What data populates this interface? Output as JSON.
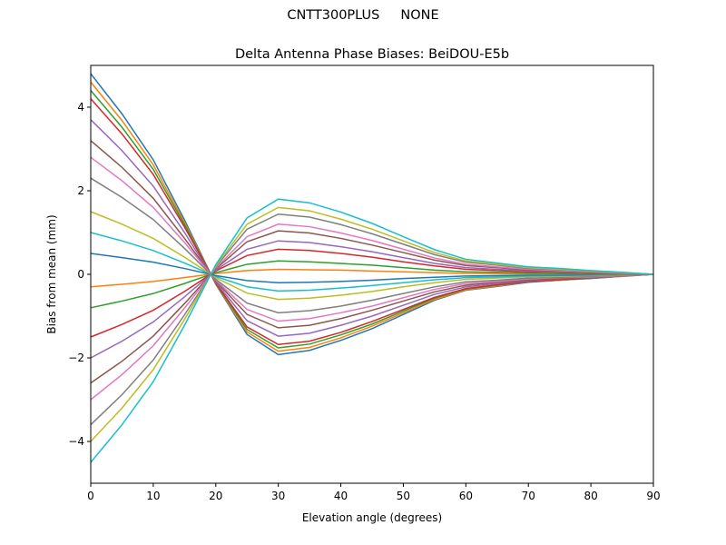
{
  "suptitle": "CNTT300PLUS     NONE",
  "chart_data": {
    "type": "line",
    "title": "Delta Antenna Phase Biases: BeiDOU-E5b",
    "xlabel": "Elevation angle (degrees)",
    "ylabel": "Bias from mean (mm)",
    "xlim": [
      0,
      90
    ],
    "ylim": [
      -5,
      5
    ],
    "xticks": [
      0,
      10,
      20,
      30,
      40,
      50,
      60,
      70,
      80,
      90
    ],
    "yticks": [
      -4,
      -2,
      0,
      2,
      4
    ],
    "grid": false,
    "colors": [
      "#1f77b4",
      "#ff7f0e",
      "#2ca02c",
      "#d62728",
      "#9467bd",
      "#8c564b",
      "#e377c2",
      "#7f7f7f",
      "#bcbd22",
      "#17becf"
    ],
    "x": [
      0,
      5,
      10,
      15,
      20,
      25,
      30,
      35,
      40,
      45,
      50,
      55,
      60,
      65,
      70,
      75,
      80,
      85,
      90
    ],
    "series": [
      {
        "values": [
          4.8,
          3.84,
          2.74,
          1.3,
          -0.24,
          -1.44,
          -1.92,
          -1.82,
          -1.58,
          -1.3,
          -0.96,
          -0.62,
          -0.38,
          -0.29,
          -0.19,
          -0.14,
          -0.1,
          -0.05,
          0
        ]
      },
      {
        "values": [
          4.6,
          3.68,
          2.62,
          1.24,
          -0.23,
          -1.38,
          -1.84,
          -1.75,
          -1.52,
          -1.24,
          -0.92,
          -0.6,
          -0.37,
          -0.28,
          -0.18,
          -0.14,
          -0.09,
          -0.05,
          0
        ]
      },
      {
        "values": [
          4.4,
          3.52,
          2.51,
          1.19,
          -0.22,
          -1.32,
          -1.76,
          -1.67,
          -1.45,
          -1.19,
          -0.88,
          -0.57,
          -0.35,
          -0.26,
          -0.18,
          -0.13,
          -0.09,
          -0.04,
          0
        ]
      },
      {
        "values": [
          4.2,
          3.36,
          2.39,
          1.13,
          -0.21,
          -1.26,
          -1.68,
          -1.6,
          -1.39,
          -1.13,
          -0.84,
          -0.55,
          -0.34,
          -0.25,
          -0.17,
          -0.13,
          -0.08,
          -0.04,
          0
        ]
      },
      {
        "values": [
          3.7,
          2.96,
          2.11,
          1.0,
          -0.19,
          -1.11,
          -1.48,
          -1.41,
          -1.22,
          -1.0,
          -0.74,
          -0.48,
          -0.3,
          -0.22,
          -0.15,
          -0.11,
          -0.07,
          -0.04,
          0
        ]
      },
      {
        "values": [
          3.2,
          2.56,
          1.82,
          0.86,
          -0.16,
          -0.96,
          -1.28,
          -1.22,
          -1.06,
          -0.86,
          -0.64,
          -0.42,
          -0.26,
          -0.19,
          -0.13,
          -0.1,
          -0.06,
          -0.03,
          0
        ]
      },
      {
        "values": [
          2.8,
          2.24,
          1.6,
          0.76,
          -0.14,
          -0.84,
          -1.12,
          -1.06,
          -0.92,
          -0.76,
          -0.56,
          -0.36,
          -0.22,
          -0.17,
          -0.11,
          -0.08,
          -0.06,
          -0.03,
          0
        ]
      },
      {
        "values": [
          2.3,
          1.84,
          1.31,
          0.62,
          -0.12,
          -0.69,
          -0.92,
          -0.87,
          -0.76,
          -0.62,
          -0.46,
          -0.3,
          -0.18,
          -0.14,
          -0.09,
          -0.07,
          -0.05,
          -0.02,
          0
        ]
      },
      {
        "values": [
          1.5,
          1.2,
          0.86,
          0.41,
          -0.08,
          -0.45,
          -0.6,
          -0.57,
          -0.5,
          -0.41,
          -0.3,
          -0.2,
          -0.12,
          -0.09,
          -0.06,
          -0.05,
          -0.03,
          -0.02,
          0
        ]
      },
      {
        "values": [
          1.0,
          0.8,
          0.57,
          0.27,
          -0.05,
          -0.3,
          -0.4,
          -0.38,
          -0.33,
          -0.27,
          -0.2,
          -0.13,
          -0.08,
          -0.06,
          -0.04,
          -0.03,
          -0.02,
          -0.01,
          0
        ]
      },
      {
        "values": [
          0.5,
          0.4,
          0.29,
          0.14,
          -0.03,
          -0.15,
          -0.2,
          -0.19,
          -0.17,
          -0.14,
          -0.1,
          -0.07,
          -0.04,
          -0.03,
          -0.02,
          -0.02,
          -0.01,
          -0.01,
          0
        ]
      },
      {
        "values": [
          -0.3,
          -0.24,
          -0.17,
          -0.08,
          0.02,
          0.09,
          0.12,
          0.11,
          0.1,
          0.08,
          0.06,
          0.04,
          0.02,
          0.02,
          0.01,
          0.01,
          0.01,
          0,
          0
        ]
      },
      {
        "values": [
          -0.8,
          -0.64,
          -0.46,
          -0.22,
          0.04,
          0.24,
          0.32,
          0.3,
          0.26,
          0.22,
          0.16,
          0.1,
          0.06,
          0.05,
          0.03,
          0.02,
          0.02,
          0.01,
          0
        ]
      },
      {
        "values": [
          -1.5,
          -1.2,
          -0.86,
          -0.41,
          0.08,
          0.45,
          0.6,
          0.57,
          0.5,
          0.41,
          0.3,
          0.2,
          0.12,
          0.09,
          0.06,
          0.05,
          0.03,
          0.02,
          0
        ]
      },
      {
        "values": [
          -2.0,
          -1.6,
          -1.14,
          -0.54,
          0.1,
          0.6,
          0.8,
          0.76,
          0.66,
          0.54,
          0.4,
          0.26,
          0.16,
          0.12,
          0.08,
          0.06,
          0.04,
          0.02,
          0
        ]
      },
      {
        "values": [
          -2.6,
          -2.08,
          -1.48,
          -0.7,
          0.13,
          0.78,
          1.04,
          0.99,
          0.86,
          0.7,
          0.52,
          0.34,
          0.21,
          0.16,
          0.1,
          0.08,
          0.05,
          0.03,
          0
        ]
      },
      {
        "values": [
          -3.0,
          -2.4,
          -1.71,
          -0.81,
          0.15,
          0.9,
          1.2,
          1.14,
          0.99,
          0.81,
          0.6,
          0.39,
          0.24,
          0.18,
          0.12,
          0.09,
          0.06,
          0.03,
          0
        ]
      },
      {
        "values": [
          -3.6,
          -2.88,
          -2.05,
          -0.97,
          0.18,
          1.08,
          1.44,
          1.37,
          1.19,
          0.97,
          0.72,
          0.47,
          0.29,
          0.22,
          0.14,
          0.11,
          0.07,
          0.04,
          0
        ]
      },
      {
        "values": [
          -4.0,
          -3.2,
          -2.28,
          -1.08,
          0.2,
          1.2,
          1.6,
          1.52,
          1.32,
          1.08,
          0.8,
          0.52,
          0.32,
          0.24,
          0.16,
          0.12,
          0.08,
          0.04,
          0
        ]
      },
      {
        "values": [
          -4.5,
          -3.6,
          -2.57,
          -1.22,
          0.23,
          1.35,
          1.8,
          1.71,
          1.49,
          1.22,
          0.9,
          0.59,
          0.36,
          0.27,
          0.18,
          0.14,
          0.09,
          0.05,
          0
        ]
      }
    ]
  }
}
